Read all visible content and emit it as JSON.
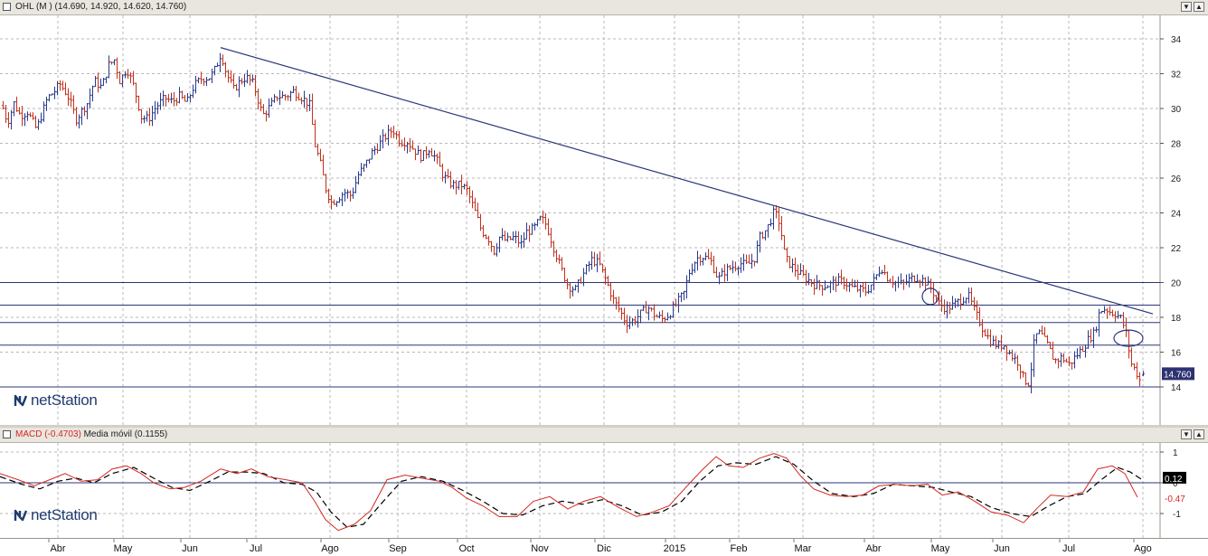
{
  "price_header": {
    "symbol": "OHL",
    "title": "OHL (M ) (14.690, 14.920, 14.620, 14.760)"
  },
  "macd_header": {
    "macd_label": "MACD (-0.4703)",
    "signal_label": "Media móvil (0.1155)"
  },
  "brand": {
    "name": "netStation",
    "color": "#1f3b6f"
  },
  "colors": {
    "up_bar": "#2a3a8c",
    "down_bar": "#c0331e",
    "trendline": "#29377a",
    "support": "#29377a",
    "macd_line": "#d2281e",
    "signal_line": "#000000",
    "last_price_bg": "#2d3270"
  },
  "chart_data": [
    {
      "type": "ohlc",
      "name": "OHL",
      "y_ticks": [
        14,
        16,
        18,
        20,
        22,
        24,
        26,
        28,
        30,
        32,
        34
      ],
      "ylim": [
        12,
        36
      ],
      "x_tick_labels": [
        "Abr",
        "May",
        "Jun",
        "Jul",
        "Ago",
        "Sep",
        "Oct",
        "Nov",
        "Dic",
        "2015",
        "Feb",
        "Mar",
        "Abr",
        "May",
        "Jun",
        "Jul",
        "Ago"
      ],
      "last_price_label": "14.760",
      "last_ohlc": {
        "open": 14.69,
        "high": 14.92,
        "low": 14.62,
        "close": 14.76
      },
      "close_path": [
        [
          0,
          30.5
        ],
        [
          8,
          29.2
        ],
        [
          15,
          30.3
        ],
        [
          22,
          29.6
        ],
        [
          30,
          29.8
        ],
        [
          40,
          28.8
        ],
        [
          52,
          30.6
        ],
        [
          60,
          31.0
        ],
        [
          66,
          31.4
        ],
        [
          74,
          30.8
        ],
        [
          84,
          29.4
        ],
        [
          96,
          30.3
        ],
        [
          104,
          31.6
        ],
        [
          112,
          31.2
        ],
        [
          120,
          32.5
        ],
        [
          126,
          32.8
        ],
        [
          132,
          31.6
        ],
        [
          140,
          32.3
        ],
        [
          148,
          31.2
        ],
        [
          156,
          29.5
        ],
        [
          164,
          29.4
        ],
        [
          172,
          30.1
        ],
        [
          182,
          30.6
        ],
        [
          190,
          30.4
        ],
        [
          198,
          30.7
        ],
        [
          206,
          30.3
        ],
        [
          214,
          31.3
        ],
        [
          222,
          31.7
        ],
        [
          232,
          31.8
        ],
        [
          238,
          32.3
        ],
        [
          244,
          33.2
        ],
        [
          250,
          32.0
        ],
        [
          258,
          31.1
        ],
        [
          266,
          31.6
        ],
        [
          272,
          31.8
        ],
        [
          280,
          31.4
        ],
        [
          290,
          29.6
        ],
        [
          298,
          30.1
        ],
        [
          306,
          30.7
        ],
        [
          316,
          30.7
        ],
        [
          324,
          31.0
        ],
        [
          334,
          30.6
        ],
        [
          342,
          30.2
        ],
        [
          348,
          27.9
        ],
        [
          354,
          26.8
        ],
        [
          360,
          25.4
        ],
        [
          366,
          24.6
        ],
        [
          372,
          24.8
        ],
        [
          380,
          25.2
        ],
        [
          388,
          25.0
        ],
        [
          396,
          26.2
        ],
        [
          404,
          26.8
        ],
        [
          410,
          27.4
        ],
        [
          418,
          27.9
        ],
        [
          426,
          28.4
        ],
        [
          434,
          28.8
        ],
        [
          442,
          28.1
        ],
        [
          450,
          28.1
        ],
        [
          458,
          27.6
        ],
        [
          466,
          27.2
        ],
        [
          474,
          27.7
        ],
        [
          482,
          27.1
        ],
        [
          490,
          26.1
        ],
        [
          500,
          25.6
        ],
        [
          510,
          25.6
        ],
        [
          516,
          25.3
        ],
        [
          524,
          24.2
        ],
        [
          532,
          23.0
        ],
        [
          540,
          22.5
        ],
        [
          546,
          21.8
        ],
        [
          552,
          22.6
        ],
        [
          560,
          22.4
        ],
        [
          568,
          22.6
        ],
        [
          576,
          22.2
        ],
        [
          582,
          22.9
        ],
        [
          590,
          23.1
        ],
        [
          598,
          23.7
        ],
        [
          604,
          23.3
        ],
        [
          612,
          22.0
        ],
        [
          620,
          20.8
        ],
        [
          628,
          19.8
        ],
        [
          636,
          19.6
        ],
        [
          646,
          20.6
        ],
        [
          654,
          21.3
        ],
        [
          662,
          21.1
        ],
        [
          670,
          20.1
        ],
        [
          678,
          19.0
        ],
        [
          686,
          18.3
        ],
        [
          692,
          17.7
        ],
        [
          700,
          17.8
        ],
        [
          708,
          18.2
        ],
        [
          716,
          18.6
        ],
        [
          724,
          18.1
        ],
        [
          732,
          17.9
        ],
        [
          740,
          18.2
        ],
        [
          748,
          18.8
        ],
        [
          756,
          19.4
        ],
        [
          762,
          20.6
        ],
        [
          770,
          21.4
        ],
        [
          778,
          21.5
        ],
        [
          786,
          21.2
        ],
        [
          794,
          20.2
        ],
        [
          802,
          20.7
        ],
        [
          810,
          20.9
        ],
        [
          818,
          21.1
        ],
        [
          826,
          21.0
        ],
        [
          834,
          21.4
        ],
        [
          840,
          22.6
        ],
        [
          848,
          23.1
        ],
        [
          856,
          24.1
        ],
        [
          862,
          23.4
        ],
        [
          868,
          21.4
        ],
        [
          876,
          20.9
        ],
        [
          884,
          20.5
        ],
        [
          892,
          20.2
        ],
        [
          900,
          19.9
        ],
        [
          910,
          19.8
        ],
        [
          918,
          19.9
        ],
        [
          926,
          20.1
        ],
        [
          934,
          20.0
        ],
        [
          942,
          19.7
        ],
        [
          950,
          19.6
        ],
        [
          958,
          19.5
        ],
        [
          966,
          20.1
        ],
        [
          974,
          20.9
        ],
        [
          982,
          20.2
        ],
        [
          990,
          20.0
        ],
        [
          998,
          19.9
        ],
        [
          1006,
          20.2
        ],
        [
          1014,
          20.3
        ],
        [
          1022,
          20.1
        ],
        [
          1030,
          19.6
        ],
        [
          1038,
          18.8
        ],
        [
          1046,
          18.5
        ],
        [
          1054,
          18.7
        ],
        [
          1062,
          19.0
        ],
        [
          1070,
          19.3
        ],
        [
          1078,
          18.3
        ],
        [
          1086,
          17.4
        ],
        [
          1094,
          16.7
        ],
        [
          1102,
          16.4
        ],
        [
          1110,
          16.4
        ],
        [
          1118,
          15.8
        ],
        [
          1126,
          15.4
        ],
        [
          1132,
          14.4
        ],
        [
          1138,
          14.2
        ],
        [
          1144,
          16.9
        ],
        [
          1150,
          17.1
        ],
        [
          1158,
          16.4
        ],
        [
          1166,
          15.5
        ],
        [
          1174,
          15.7
        ],
        [
          1182,
          15.3
        ],
        [
          1190,
          15.8
        ],
        [
          1198,
          16.3
        ],
        [
          1204,
          16.8
        ],
        [
          1210,
          17.1
        ],
        [
          1216,
          18.4
        ],
        [
          1222,
          18.5
        ],
        [
          1228,
          18.3
        ],
        [
          1234,
          18.2
        ],
        [
          1240,
          17.9
        ],
        [
          1246,
          16.9
        ],
        [
          1250,
          15.4
        ],
        [
          1256,
          14.9
        ],
        [
          1260,
          14.4
        ],
        [
          1264,
          14.76
        ]
      ],
      "trendline": {
        "from": [
          244,
          33.5
        ],
        "to": [
          1275,
          18.2
        ]
      },
      "horizontal_levels": [
        20.0,
        18.7,
        17.7,
        16.4,
        14.0
      ],
      "ellipse_markers": [
        {
          "x": 1029,
          "y": 19.2
        },
        {
          "x": 1248,
          "y": 16.8
        }
      ]
    },
    {
      "type": "line",
      "name": "MACD",
      "y_ticks": [
        -1,
        0,
        1
      ],
      "ylim": [
        -1.5,
        1.25
      ],
      "value_labels": [
        "0.12",
        "-0.47"
      ],
      "series": [
        {
          "name": "MACD",
          "values": [
            [
              0,
              0.3
            ],
            [
              20,
              0.1
            ],
            [
              38,
              -0.1
            ],
            [
              55,
              0.1
            ],
            [
              72,
              0.3
            ],
            [
              90,
              0.05
            ],
            [
              108,
              0.1
            ],
            [
              124,
              0.45
            ],
            [
              140,
              0.55
            ],
            [
              156,
              0.3
            ],
            [
              170,
              0.0
            ],
            [
              188,
              -0.2
            ],
            [
              204,
              -0.15
            ],
            [
              222,
              0.05
            ],
            [
              244,
              0.45
            ],
            [
              262,
              0.3
            ],
            [
              278,
              0.45
            ],
            [
              296,
              0.2
            ],
            [
              316,
              0.1
            ],
            [
              334,
              0.0
            ],
            [
              348,
              -0.6
            ],
            [
              360,
              -1.2
            ],
            [
              374,
              -1.55
            ],
            [
              392,
              -1.35
            ],
            [
              410,
              -0.9
            ],
            [
              428,
              0.1
            ],
            [
              448,
              0.25
            ],
            [
              466,
              0.15
            ],
            [
              486,
              0.05
            ],
            [
              500,
              -0.15
            ],
            [
              516,
              -0.5
            ],
            [
              534,
              -0.75
            ],
            [
              552,
              -1.1
            ],
            [
              572,
              -1.1
            ],
            [
              590,
              -0.6
            ],
            [
              608,
              -0.45
            ],
            [
              628,
              -0.85
            ],
            [
              646,
              -0.6
            ],
            [
              664,
              -0.45
            ],
            [
              684,
              -0.8
            ],
            [
              704,
              -1.1
            ],
            [
              722,
              -0.95
            ],
            [
              740,
              -0.75
            ],
            [
              760,
              -0.1
            ],
            [
              776,
              0.4
            ],
            [
              792,
              0.85
            ],
            [
              806,
              0.55
            ],
            [
              822,
              0.5
            ],
            [
              840,
              0.8
            ],
            [
              856,
              0.95
            ],
            [
              870,
              0.8
            ],
            [
              886,
              0.2
            ],
            [
              900,
              -0.2
            ],
            [
              918,
              -0.4
            ],
            [
              936,
              -0.45
            ],
            [
              954,
              -0.4
            ],
            [
              972,
              -0.1
            ],
            [
              990,
              -0.05
            ],
            [
              1008,
              -0.1
            ],
            [
              1026,
              -0.05
            ],
            [
              1042,
              -0.4
            ],
            [
              1060,
              -0.3
            ],
            [
              1078,
              -0.6
            ],
            [
              1096,
              -0.95
            ],
            [
              1114,
              -1.05
            ],
            [
              1132,
              -1.3
            ],
            [
              1148,
              -0.8
            ],
            [
              1162,
              -0.4
            ],
            [
              1180,
              -0.45
            ],
            [
              1198,
              -0.3
            ],
            [
              1214,
              0.45
            ],
            [
              1230,
              0.55
            ],
            [
              1244,
              0.3
            ],
            [
              1258,
              -0.47
            ]
          ]
        },
        {
          "name": "Media móvil",
          "values": [
            [
              0,
              0.2
            ],
            [
              24,
              -0.05
            ],
            [
              44,
              -0.2
            ],
            [
              64,
              0.05
            ],
            [
              84,
              0.15
            ],
            [
              104,
              0.0
            ],
            [
              124,
              0.3
            ],
            [
              148,
              0.5
            ],
            [
              170,
              0.15
            ],
            [
              190,
              -0.15
            ],
            [
              210,
              -0.25
            ],
            [
              232,
              0.05
            ],
            [
              252,
              0.35
            ],
            [
              272,
              0.35
            ],
            [
              292,
              0.3
            ],
            [
              314,
              0.0
            ],
            [
              334,
              -0.05
            ],
            [
              350,
              -0.3
            ],
            [
              366,
              -0.95
            ],
            [
              384,
              -1.45
            ],
            [
              402,
              -1.35
            ],
            [
              424,
              -0.6
            ],
            [
              444,
              0.05
            ],
            [
              466,
              0.2
            ],
            [
              490,
              0.05
            ],
            [
              512,
              -0.25
            ],
            [
              534,
              -0.6
            ],
            [
              556,
              -1.0
            ],
            [
              578,
              -1.05
            ],
            [
              600,
              -0.75
            ],
            [
              622,
              -0.6
            ],
            [
              644,
              -0.7
            ],
            [
              666,
              -0.55
            ],
            [
              688,
              -0.75
            ],
            [
              710,
              -1.05
            ],
            [
              732,
              -0.95
            ],
            [
              754,
              -0.6
            ],
            [
              774,
              0.05
            ],
            [
              794,
              0.55
            ],
            [
              814,
              0.65
            ],
            [
              836,
              0.6
            ],
            [
              858,
              0.85
            ],
            [
              878,
              0.6
            ],
            [
              900,
              0.05
            ],
            [
              920,
              -0.35
            ],
            [
              944,
              -0.45
            ],
            [
              966,
              -0.35
            ],
            [
              988,
              -0.05
            ],
            [
              1010,
              -0.1
            ],
            [
              1032,
              -0.15
            ],
            [
              1052,
              -0.3
            ],
            [
              1074,
              -0.45
            ],
            [
              1096,
              -0.8
            ],
            [
              1118,
              -1.0
            ],
            [
              1140,
              -1.1
            ],
            [
              1160,
              -0.75
            ],
            [
              1180,
              -0.45
            ],
            [
              1200,
              -0.35
            ],
            [
              1218,
              0.1
            ],
            [
              1236,
              0.5
            ],
            [
              1250,
              0.35
            ],
            [
              1262,
              0.12
            ]
          ]
        }
      ]
    }
  ]
}
